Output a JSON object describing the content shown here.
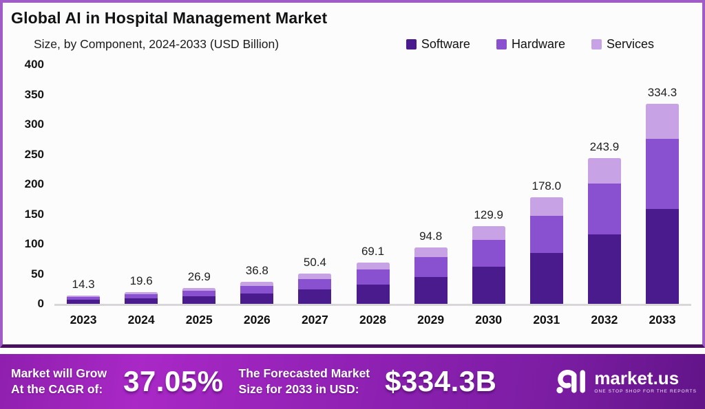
{
  "header": {
    "title": "Global AI in Hospital Management Market",
    "subtitle": "Size, by Component, 2024-2033 (USD Billion)"
  },
  "chart_data": {
    "type": "bar",
    "stacked": true,
    "title": "Global AI in Hospital Management Market",
    "subtitle": "Size, by Component, 2024-2033 (USD Billion)",
    "unit": "USD Billion",
    "categories": [
      "2023",
      "2024",
      "2025",
      "2026",
      "2027",
      "2028",
      "2029",
      "2030",
      "2031",
      "2032",
      "2033"
    ],
    "totals": [
      14.3,
      19.6,
      26.9,
      36.8,
      50.4,
      69.1,
      94.8,
      129.9,
      178.0,
      243.9,
      334.3
    ],
    "total_labels": [
      "14.3",
      "19.6",
      "26.9",
      "36.8",
      "50.4",
      "69.1",
      "94.8",
      "129.9",
      "178.0",
      "243.9",
      "334.3"
    ],
    "series": [
      {
        "name": "Software",
        "color": "#4a1b8c",
        "values": [
          6.8,
          9.3,
          12.8,
          17.5,
          23.9,
          32.8,
          45.0,
          61.7,
          84.6,
          115.9,
          158.8
        ]
      },
      {
        "name": "Hardware",
        "color": "#8951d0",
        "values": [
          5.0,
          6.9,
          9.4,
          12.9,
          17.6,
          24.2,
          33.2,
          45.5,
          62.3,
          85.4,
          117.0
        ]
      },
      {
        "name": "Services",
        "color": "#c7a3e6",
        "values": [
          2.5,
          3.4,
          4.7,
          6.4,
          8.9,
          12.1,
          16.6,
          22.7,
          31.1,
          42.6,
          58.5
        ]
      }
    ],
    "ylim": [
      0,
      400
    ],
    "yticks": [
      0,
      50,
      100,
      150,
      200,
      250,
      300,
      350,
      400
    ],
    "grid": false,
    "legend_position": "top-right"
  },
  "banner": {
    "cagr_label_line1": "Market will Grow",
    "cagr_label_line2": "At the CAGR of:",
    "cagr_value": "37.05%",
    "forecast_label_line1": "The Forecasted Market",
    "forecast_label_line2": "Size for 2033 in USD:",
    "forecast_value": "$334.3B",
    "logo_text": "market.us",
    "logo_tagline": "ONE STOP SHOP FOR THE REPORTS"
  },
  "colors": {
    "frame_border": "#a05cc6",
    "frame_border_bottom": "#47115f",
    "software": "#4a1b8c",
    "hardware": "#8951d0",
    "services": "#c7a3e6",
    "banner_purple": "#9021b4",
    "axis_baseline": "#d8d6d8"
  }
}
